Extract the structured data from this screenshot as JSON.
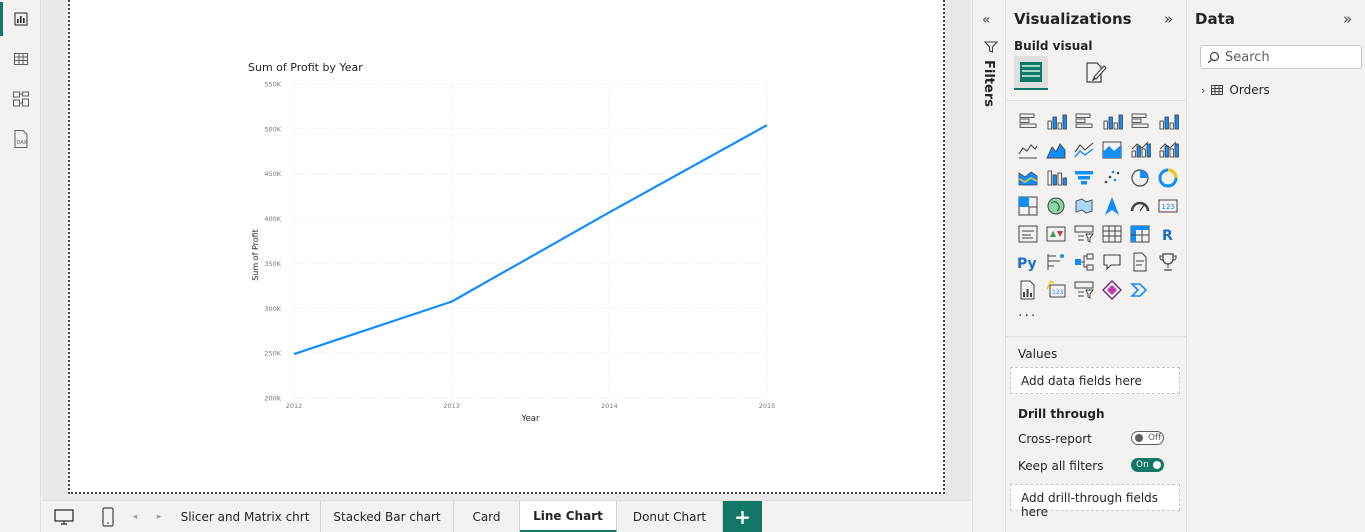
{
  "rail": {
    "items": [
      {
        "name": "report-view",
        "icon": "bar-chart-icon"
      },
      {
        "name": "table-view",
        "icon": "table-icon"
      },
      {
        "name": "model-view",
        "icon": "model-icon"
      },
      {
        "name": "dax-query-view",
        "icon": "dax-icon",
        "text": "DAX"
      }
    ]
  },
  "chart_data": {
    "type": "line",
    "title": "Sum of Profit by Year",
    "xlabel": "Year",
    "ylabel": "Sum of Profit",
    "x": [
      "2012",
      "2013",
      "2014",
      "2015"
    ],
    "series": [
      {
        "values": [
          248940,
          307415,
          406935,
          504166
        ]
      }
    ],
    "ylim": [
      200000,
      550000
    ],
    "yticks": [
      200000,
      250000,
      300000,
      350000,
      400000,
      450000,
      500000,
      550000
    ],
    "ytick_labels": [
      "200K",
      "250K",
      "300K",
      "350K",
      "400K",
      "450K",
      "500K",
      "550K"
    ],
    "grid": true,
    "line_color": "#118dff"
  },
  "filters": {
    "label": "Filters"
  },
  "visualizations": {
    "title": "Visualizations",
    "build_visual_label": "Build visual",
    "r_label": "R",
    "py_label": "Py",
    "ellipsis": "...",
    "values_label": "Values",
    "values_placeholder": "Add data fields here",
    "drill_through_label": "Drill through",
    "cross_report_label": "Cross-report",
    "cross_report_toggle": "Off",
    "keep_filters_label": "Keep all filters",
    "keep_filters_toggle": "On",
    "drill_placeholder": "Add drill-through fields here"
  },
  "data_pane": {
    "title": "Data",
    "search_placeholder": "Search",
    "tables": [
      {
        "name": "Orders"
      }
    ]
  },
  "tabs": {
    "items": [
      "Slicer and Matrix chrt",
      "Stacked Bar chart",
      "Card",
      "Line Chart",
      "Donut Chart"
    ],
    "active": "Line Chart",
    "add_label": "+"
  },
  "colors": {
    "accent": "#117865",
    "line": "#118dff"
  }
}
